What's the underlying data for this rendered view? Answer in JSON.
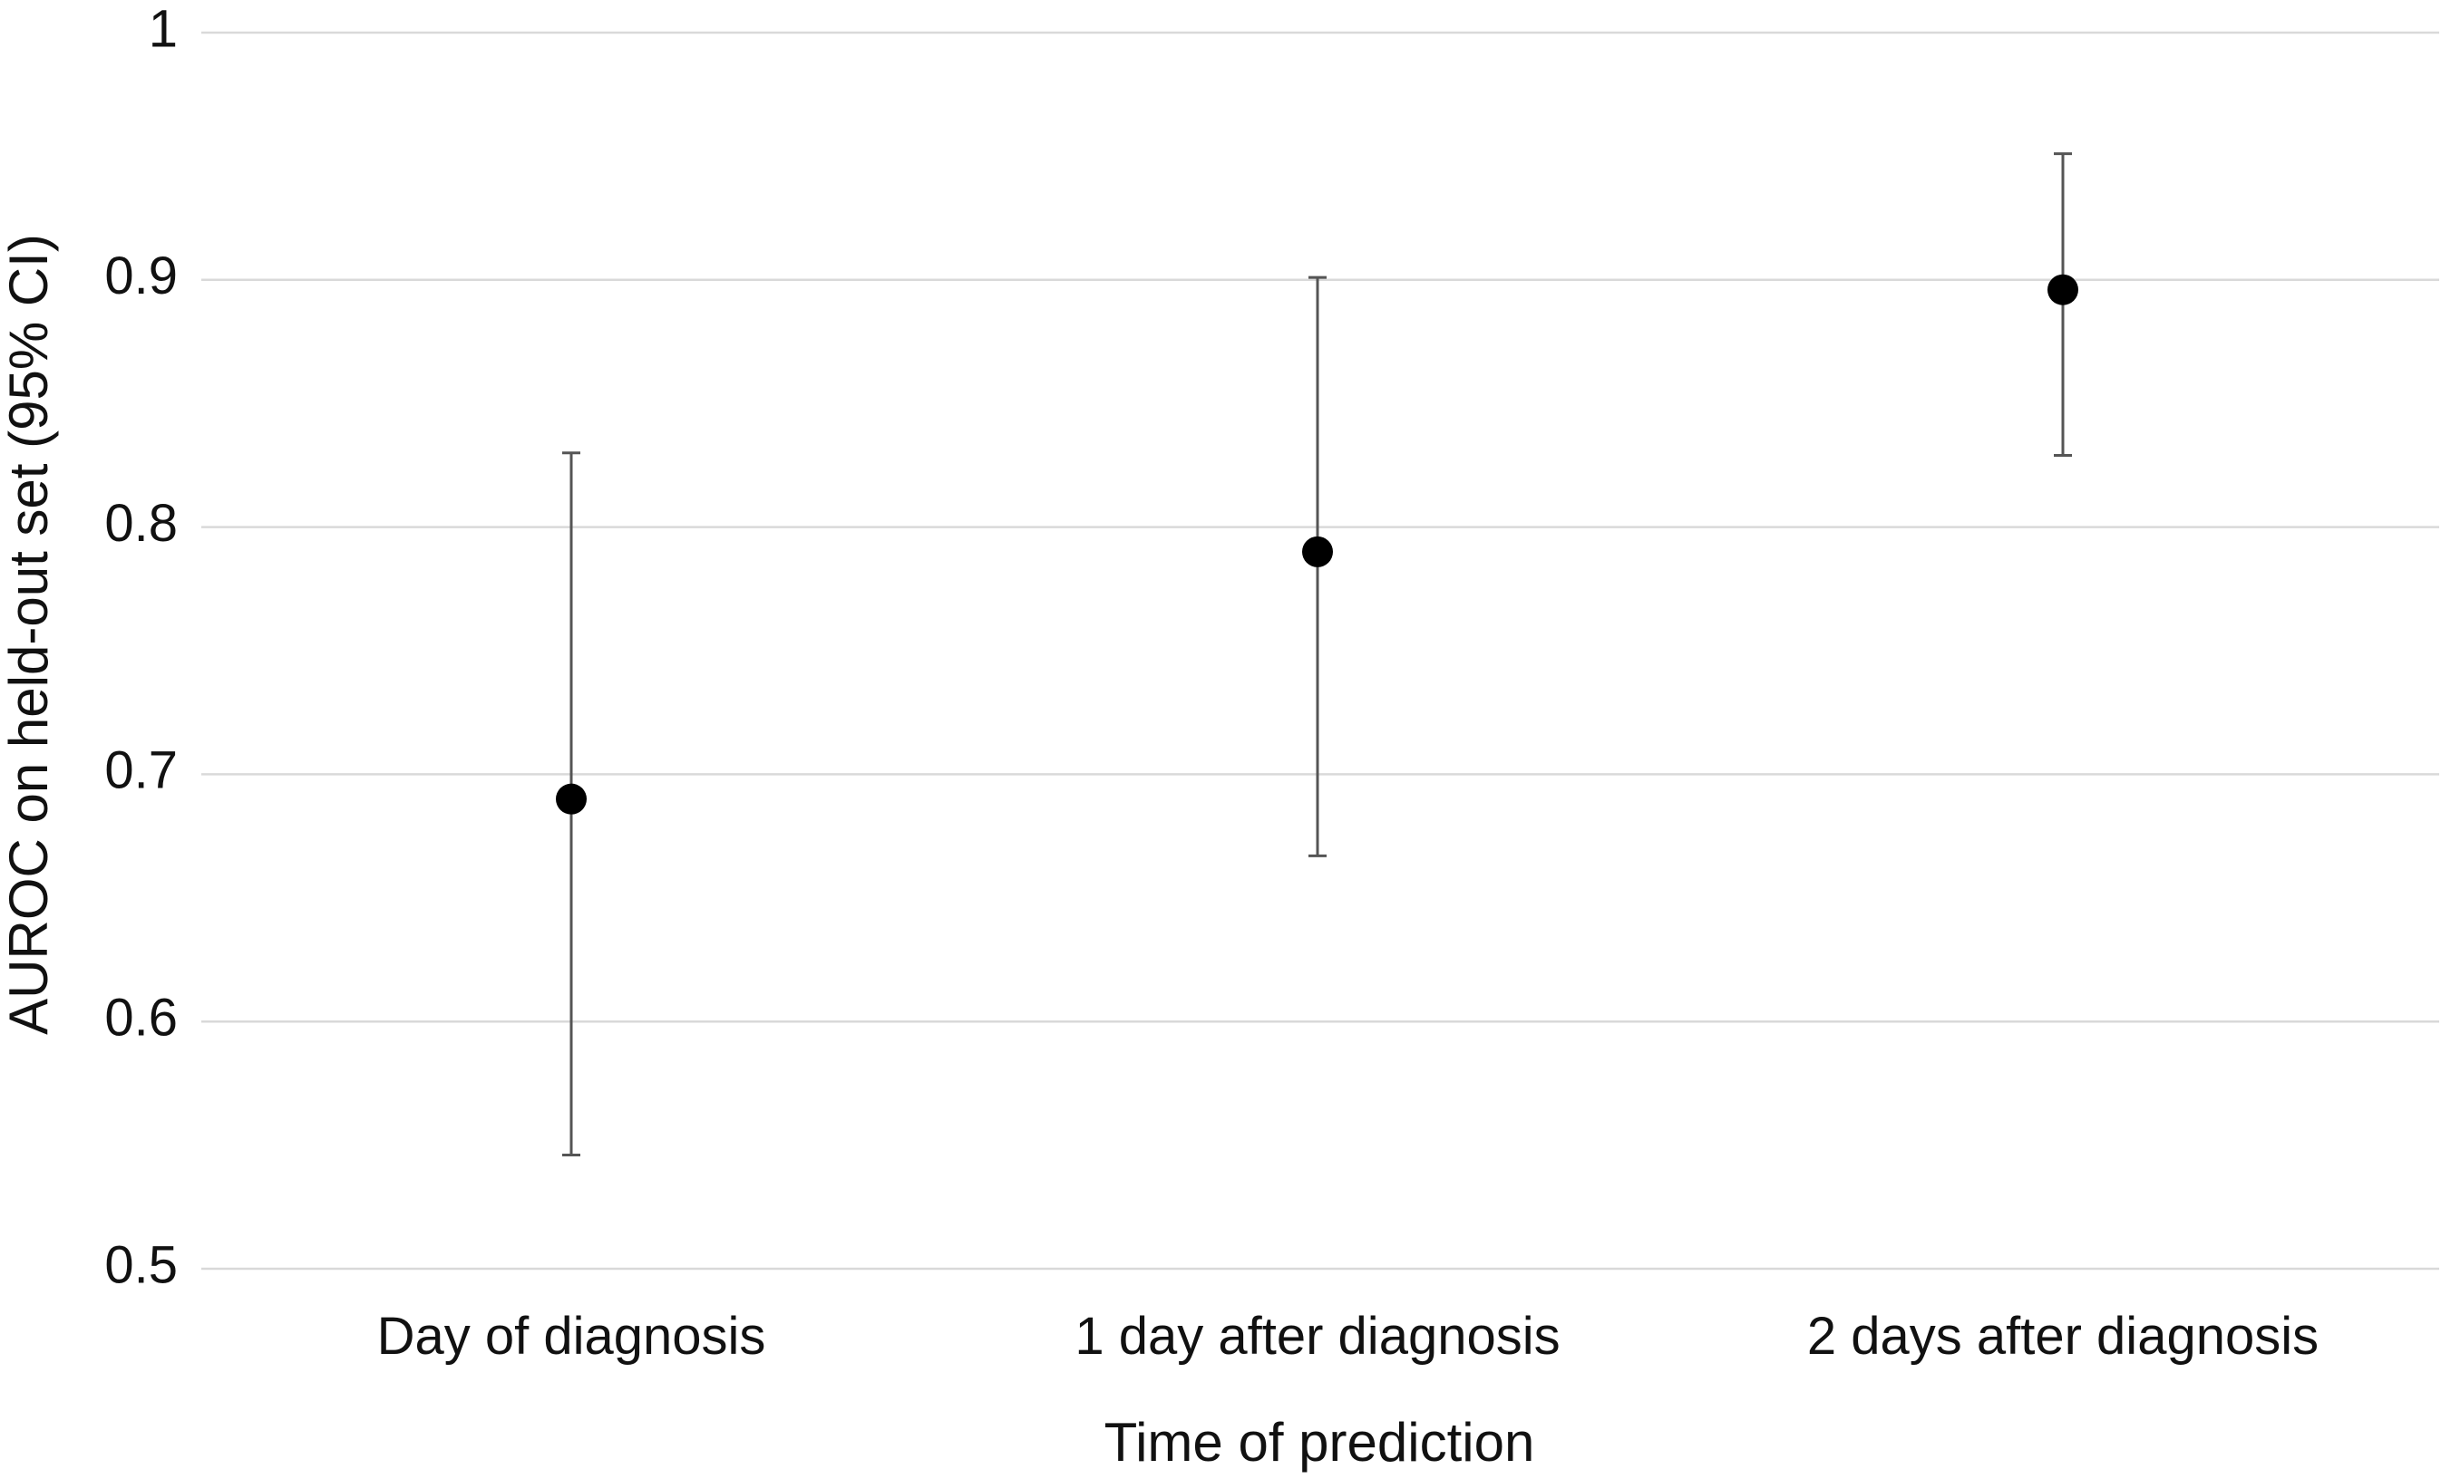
{
  "chart_data": {
    "type": "scatter",
    "title": "",
    "xlabel": "Time of prediction",
    "ylabel": "AUROC on held-out set (95% CI)",
    "ylim": [
      0.5,
      1.0
    ],
    "yticks": [
      "0.5",
      "0.6",
      "0.7",
      "0.8",
      "0.9",
      "1"
    ],
    "categories": [
      "Day of diagnosis",
      "1 day after diagnosis",
      "2 days after diagnosis"
    ],
    "series": [
      {
        "values": [
          0.69,
          0.79,
          0.896
        ],
        "ci_lower": [
          0.546,
          0.667,
          0.829
        ],
        "ci_upper": [
          0.83,
          0.901,
          0.951
        ],
        "color": "#000000"
      }
    ],
    "grid": true,
    "legend": "none",
    "error_bar_color": "#555555",
    "gridline_color": "#d9d9d9"
  }
}
